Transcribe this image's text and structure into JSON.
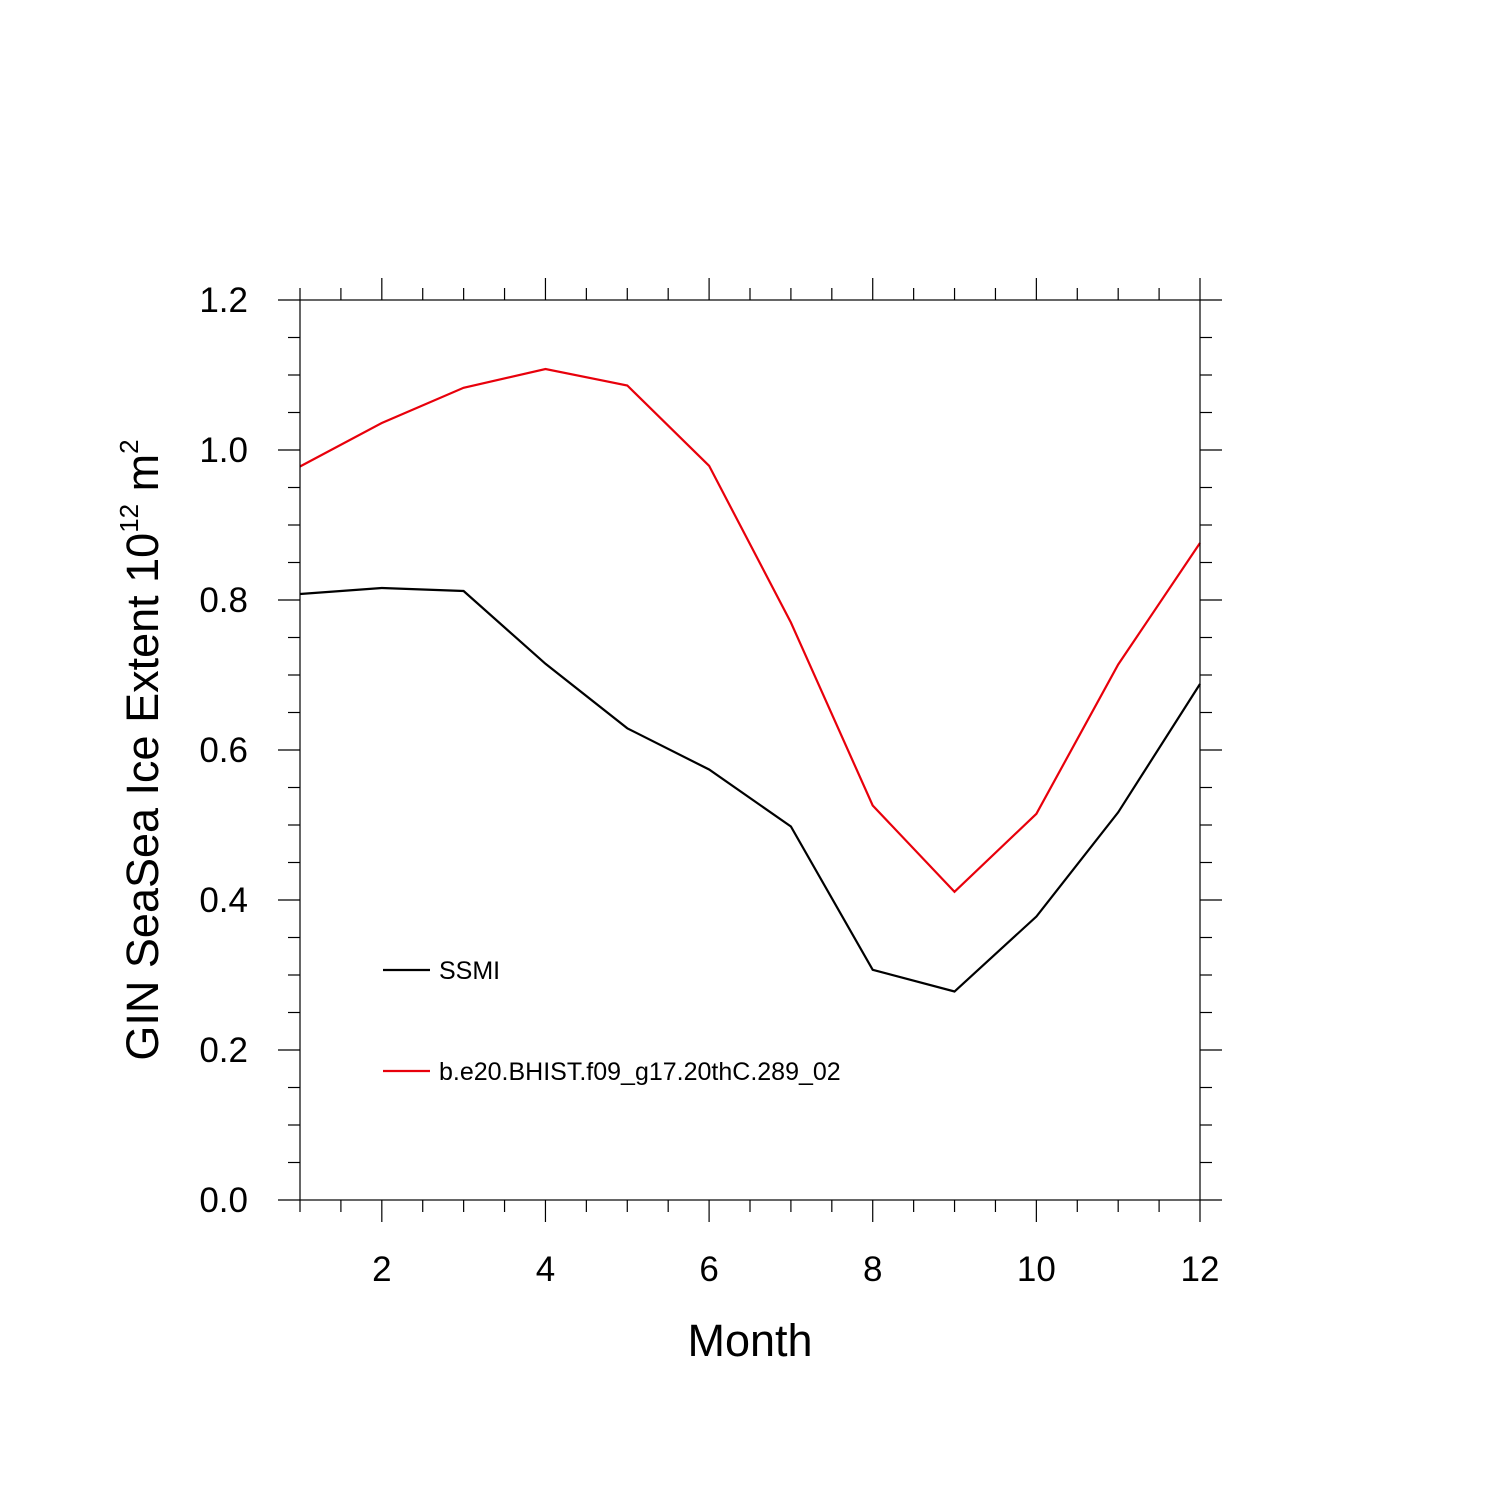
{
  "chart_data": {
    "type": "line",
    "title": "",
    "xlabel": "Month",
    "ylabel": {
      "main": "GIN SeaSea Ice Extent 10",
      "sup1": "12",
      "unit": " m",
      "sup2": "2"
    },
    "xlim": [
      1,
      12
    ],
    "ylim": [
      0.0,
      1.2
    ],
    "xticks": [
      2,
      4,
      6,
      8,
      10,
      12
    ],
    "xtick_labels": [
      "2",
      "4",
      "6",
      "8",
      "10",
      "12"
    ],
    "yticks": [
      0.0,
      0.2,
      0.4,
      0.6,
      0.8,
      1.0,
      1.2
    ],
    "ytick_labels": [
      "0.0",
      "0.2",
      "0.4",
      "0.6",
      "0.8",
      "1.0",
      "1.2"
    ],
    "grid": false,
    "legend_position": "bottom-left",
    "x": [
      1,
      2,
      3,
      4,
      5,
      6,
      7,
      8,
      9,
      10,
      11,
      12
    ],
    "series": [
      {
        "name": "SSMI",
        "color": "#000000",
        "values": [
          0.808,
          0.816,
          0.812,
          0.715,
          0.629,
          0.574,
          0.498,
          0.307,
          0.278,
          0.378,
          0.517,
          0.688
        ]
      },
      {
        "name": "b.e20.BHIST.f09_g17.20thC.289_02",
        "color": "#e8000b",
        "values": [
          0.978,
          1.036,
          1.083,
          1.108,
          1.086,
          0.979,
          0.77,
          0.526,
          0.411,
          0.515,
          0.714,
          0.876
        ]
      }
    ]
  }
}
